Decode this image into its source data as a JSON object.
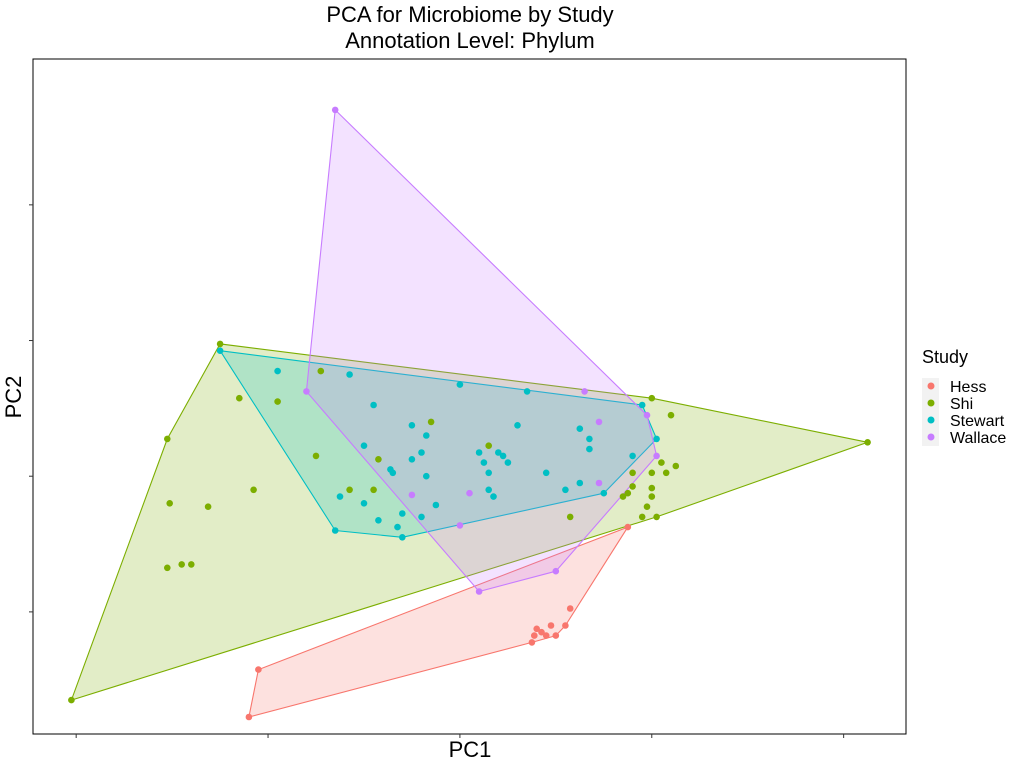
{
  "chart_data": {
    "type": "scatter",
    "title": "PCA for Microbiome by Study",
    "subtitle": "Annotation Level: Phylum",
    "xlabel": "PC1",
    "ylabel": "PC2",
    "xlim": [
      -4.9,
      13.3
    ],
    "ylim": [
      -7.6,
      12.3
    ],
    "grid": false,
    "tick_labels_visible": false,
    "x_ticks": [
      -4,
      0,
      4,
      8,
      12
    ],
    "y_ticks": [
      -4,
      0,
      4,
      8
    ],
    "legend": {
      "title": "Study",
      "placement": "right"
    },
    "convex_hulls": true,
    "series": [
      {
        "name": "Hess",
        "color": "#F8766D",
        "points": [
          [
            -0.4,
            -7.1
          ],
          [
            -0.2,
            -5.7
          ],
          [
            7.5,
            -1.5
          ],
          [
            5.5,
            -4.9
          ],
          [
            5.55,
            -4.7
          ],
          [
            5.8,
            -4.7
          ],
          [
            6.0,
            -4.7
          ],
          [
            5.6,
            -4.5
          ],
          [
            5.7,
            -4.6
          ],
          [
            5.9,
            -4.4
          ],
          [
            6.2,
            -4.4
          ],
          [
            6.3,
            -3.9
          ]
        ]
      },
      {
        "name": "Shi",
        "color": "#7CAE00",
        "points": [
          [
            -4.1,
            -6.6
          ],
          [
            -1.0,
            3.9
          ],
          [
            12.5,
            1.0
          ],
          [
            -0.6,
            2.3
          ],
          [
            -2.1,
            1.1
          ],
          [
            -2.05,
            -0.8
          ],
          [
            -1.25,
            -0.9
          ],
          [
            -2.1,
            -2.7
          ],
          [
            -1.8,
            -2.6
          ],
          [
            -1.6,
            -2.6
          ],
          [
            -0.3,
            -0.4
          ],
          [
            0.2,
            2.2
          ],
          [
            1.0,
            0.6
          ],
          [
            1.7,
            -0.4
          ],
          [
            2.2,
            -0.4
          ],
          [
            2.3,
            0.5
          ],
          [
            1.1,
            3.1
          ],
          [
            3.4,
            1.6
          ],
          [
            4.6,
            0.9
          ],
          [
            8.0,
            2.3
          ],
          [
            8.4,
            1.8
          ],
          [
            8.2,
            0.4
          ],
          [
            8.0,
            0.1
          ],
          [
            8.3,
            0.1
          ],
          [
            8.5,
            0.3
          ],
          [
            7.6,
            0.1
          ],
          [
            7.6,
            -0.3
          ],
          [
            8.0,
            -0.35
          ],
          [
            7.9,
            -0.9
          ],
          [
            7.8,
            -1.2
          ],
          [
            8.1,
            -1.2
          ],
          [
            8.0,
            -0.6
          ],
          [
            7.5,
            -0.5
          ],
          [
            7.4,
            -0.6
          ],
          [
            6.3,
            -1.2
          ]
        ]
      },
      {
        "name": "Stewart",
        "color": "#00BFC4",
        "points": [
          [
            -1.0,
            3.7
          ],
          [
            1.7,
            3.0
          ],
          [
            4.0,
            2.7
          ],
          [
            5.4,
            2.5
          ],
          [
            7.8,
            2.1
          ],
          [
            8.1,
            1.1
          ],
          [
            7.6,
            0.6
          ],
          [
            7.0,
            -0.5
          ],
          [
            2.8,
            -1.8
          ],
          [
            1.4,
            -1.6
          ],
          [
            0.2,
            3.1
          ],
          [
            2.2,
            2.1
          ],
          [
            3.0,
            1.5
          ],
          [
            5.2,
            1.5
          ],
          [
            3.3,
            1.2
          ],
          [
            6.5,
            1.4
          ],
          [
            6.7,
            0.8
          ],
          [
            6.7,
            1.1
          ],
          [
            2.0,
            0.9
          ],
          [
            3.2,
            0.7
          ],
          [
            4.4,
            0.7
          ],
          [
            4.8,
            0.7
          ],
          [
            4.9,
            0.6
          ],
          [
            3.0,
            0.5
          ],
          [
            4.5,
            0.4
          ],
          [
            5.0,
            0.4
          ],
          [
            2.55,
            0.2
          ],
          [
            2.6,
            0.1
          ],
          [
            3.3,
            0.0
          ],
          [
            4.6,
            0.1
          ],
          [
            5.8,
            0.1
          ],
          [
            6.5,
            -0.2
          ],
          [
            6.2,
            -0.4
          ],
          [
            4.6,
            -0.4
          ],
          [
            4.7,
            -0.6
          ],
          [
            3.5,
            -0.85
          ],
          [
            2.8,
            -1.1
          ],
          [
            3.2,
            -1.2
          ],
          [
            2.3,
            -1.3
          ],
          [
            2.7,
            -1.5
          ],
          [
            2.0,
            -0.8
          ],
          [
            1.5,
            -0.6
          ]
        ]
      },
      {
        "name": "Wallace",
        "color": "#C77CFF",
        "points": [
          [
            1.4,
            10.8
          ],
          [
            0.8,
            2.5
          ],
          [
            4.4,
            -3.4
          ],
          [
            6.0,
            -2.8
          ],
          [
            8.1,
            0.6
          ],
          [
            7.9,
            1.8
          ],
          [
            6.6,
            2.5
          ],
          [
            6.9,
            1.6
          ],
          [
            6.9,
            -0.2
          ],
          [
            4.2,
            -0.5
          ],
          [
            3.0,
            -0.55
          ],
          [
            4.0,
            -1.45
          ]
        ]
      }
    ]
  }
}
